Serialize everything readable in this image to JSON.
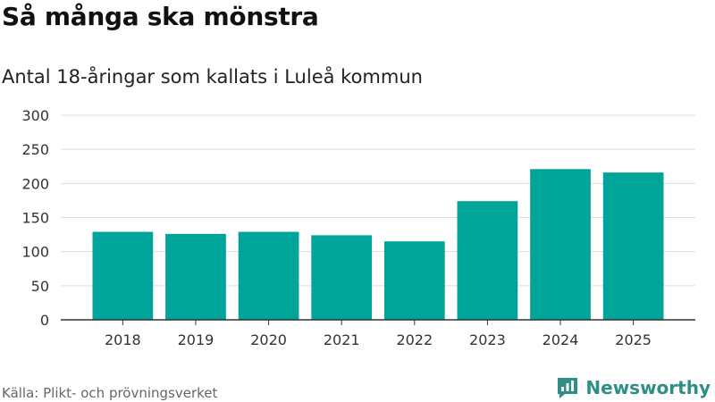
{
  "header": {
    "title": "Så många ska mönstra",
    "subtitle": "Antal 18-åringar som kallats i Luleå kommun"
  },
  "footer": {
    "source": "Källa: Plikt- och prövningsverket",
    "brand": "Newsworthy",
    "brand_icon": "newsworthy-logo-icon"
  },
  "colors": {
    "bar": "#00a499",
    "grid": "#dddddd",
    "brand": "#2f8f86"
  },
  "chart_data": {
    "type": "bar",
    "categories": [
      "2018",
      "2019",
      "2020",
      "2021",
      "2022",
      "2023",
      "2024",
      "2025"
    ],
    "values": [
      129,
      126,
      129,
      124,
      115,
      174,
      221,
      216
    ],
    "yticks": [
      0,
      50,
      100,
      150,
      200,
      250,
      300
    ],
    "ylim": [
      0,
      300
    ],
    "grid": true,
    "legend": false
  }
}
